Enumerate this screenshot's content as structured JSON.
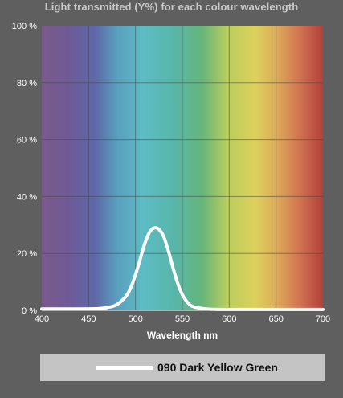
{
  "chart_data": {
    "type": "line",
    "title": "Light transmitted (Y%) for each colour wavelength",
    "xlabel": "Wavelength nm",
    "ylabel": "",
    "xlim": [
      400,
      700
    ],
    "ylim": [
      0,
      100
    ],
    "x_ticks": [
      "400",
      "450",
      "500",
      "550",
      "600",
      "650",
      "700"
    ],
    "y_ticks": [
      "0 %",
      "20 %",
      "40 %",
      "60 %",
      "80 %",
      "100 %"
    ],
    "grid": true,
    "background": "visible-spectrum gradient",
    "legend_position": "bottom",
    "series": [
      {
        "name": "090 Dark Yellow Green",
        "color": "#ffffff",
        "x": [
          400,
          420,
          440,
          460,
          470,
          480,
          490,
          495,
          500,
          505,
          510,
          515,
          520,
          525,
          530,
          535,
          540,
          545,
          550,
          555,
          560,
          570,
          580,
          600,
          650,
          700
        ],
        "y": [
          0.5,
          0.5,
          0.5,
          0.6,
          1,
          2,
          5,
          8,
          12.5,
          18,
          23.5,
          27.5,
          29,
          28.5,
          26,
          21,
          15,
          9.5,
          5.5,
          3,
          1.5,
          0.7,
          0.4,
          0.3,
          0.3,
          0.3
        ]
      }
    ]
  }
}
